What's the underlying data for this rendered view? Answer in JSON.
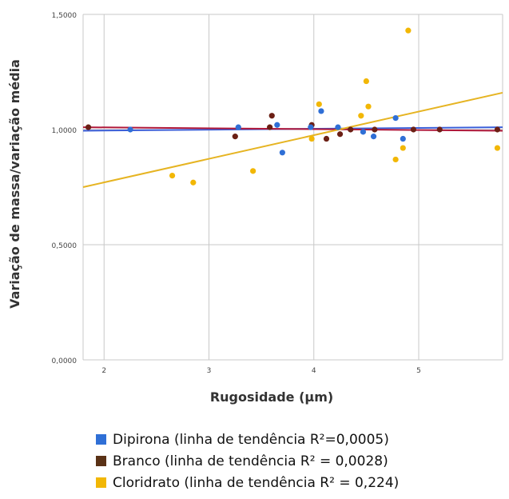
{
  "chart_data": {
    "type": "scatter",
    "xlabel": "Rugosidade (μm)",
    "ylabel": "Variação de massa/variação média",
    "xlim": [
      1.8,
      5.8
    ],
    "ylim": [
      0.0,
      1.5
    ],
    "x_ticks": [
      "2",
      "3",
      "4",
      "5"
    ],
    "y_ticks": [
      "0,0000",
      "0,5000",
      "1,0000",
      "1,5000"
    ],
    "grid": true,
    "legend_position": "bottom",
    "series": [
      {
        "name": "Dipirona (linha de tendência R²=0,0005)",
        "color": "#2f6fd6",
        "points": [
          [
            2.25,
            1.0
          ],
          [
            3.28,
            1.01
          ],
          [
            3.65,
            1.02
          ],
          [
            3.7,
            0.9
          ],
          [
            3.97,
            1.01
          ],
          [
            4.07,
            1.08
          ],
          [
            4.23,
            1.01
          ],
          [
            4.47,
            0.99
          ],
          [
            4.57,
            0.97
          ],
          [
            4.78,
            1.05
          ],
          [
            4.85,
            0.96
          ]
        ],
        "trend": [
          [
            1.8,
            0.995
          ],
          [
            5.8,
            1.01
          ]
        ]
      },
      {
        "name": "Branco (linha de tendência R² = 0,0028)",
        "color": "#6b1f14",
        "points": [
          [
            1.85,
            1.01
          ],
          [
            3.25,
            0.97
          ],
          [
            3.58,
            1.01
          ],
          [
            3.6,
            1.06
          ],
          [
            3.98,
            1.02
          ],
          [
            4.12,
            0.96
          ],
          [
            4.25,
            0.98
          ],
          [
            4.35,
            1.0
          ],
          [
            4.58,
            1.0
          ],
          [
            4.95,
            1.0
          ],
          [
            5.2,
            1.0
          ],
          [
            5.75,
            1.0
          ]
        ],
        "trend": [
          [
            1.8,
            1.01
          ],
          [
            5.8,
            0.995
          ]
        ]
      },
      {
        "name": "Cloridrato (linha de tendência R² = 0,224)",
        "color": "#f2b705",
        "points": [
          [
            2.65,
            0.8
          ],
          [
            2.85,
            0.77
          ],
          [
            3.42,
            0.82
          ],
          [
            3.98,
            0.96
          ],
          [
            4.05,
            1.11
          ],
          [
            4.45,
            1.06
          ],
          [
            4.5,
            1.21
          ],
          [
            4.52,
            1.1
          ],
          [
            4.78,
            0.87
          ],
          [
            4.85,
            0.92
          ],
          [
            4.9,
            1.43
          ],
          [
            5.75,
            0.92
          ]
        ],
        "trend": [
          [
            1.8,
            0.75
          ],
          [
            5.8,
            1.16
          ]
        ]
      }
    ]
  }
}
